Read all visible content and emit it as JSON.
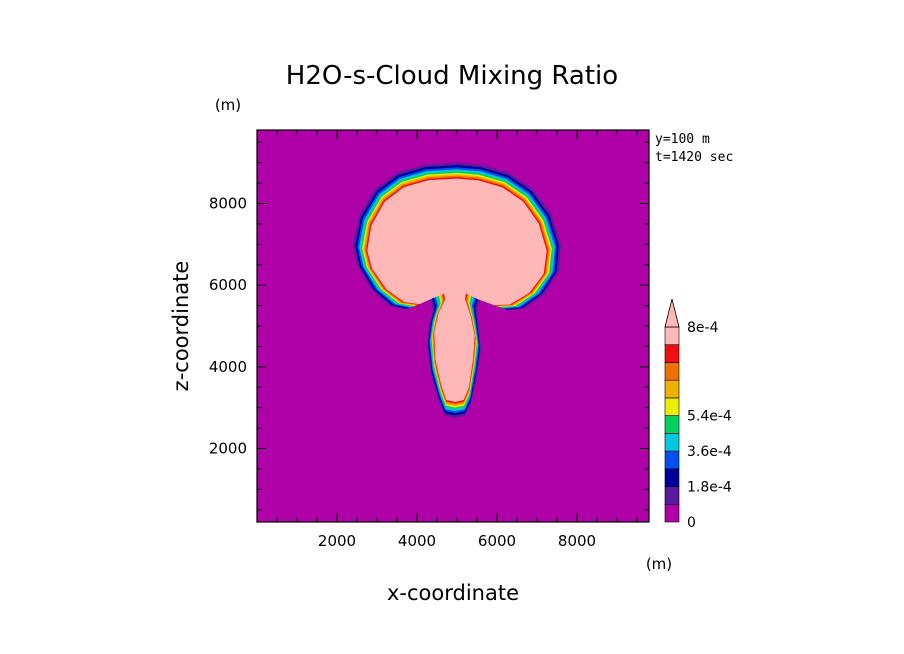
{
  "chart_data": {
    "type": "contour",
    "title": "H2O-s-Cloud Mixing Ratio",
    "xlabel": "x-coordinate",
    "ylabel": "z-coordinate",
    "x_unit": "(m)",
    "y_unit": "(m)",
    "xlim": [
      0,
      9800
    ],
    "ylim": [
      200,
      9800
    ],
    "x_ticks": [
      {
        "value": 2000,
        "label": "2000"
      },
      {
        "value": 4000,
        "label": "4000"
      },
      {
        "value": 6000,
        "label": "6000"
      },
      {
        "value": 8000,
        "label": "8000"
      }
    ],
    "y_ticks": [
      {
        "value": 2000,
        "label": "2000"
      },
      {
        "value": 4000,
        "label": "4000"
      },
      {
        "value": 6000,
        "label": "6000"
      },
      {
        "value": 8000,
        "label": "8000"
      }
    ],
    "annotations": [
      "y=100 m",
      "t=1420 sec"
    ],
    "background_level": 0,
    "colorbar": {
      "levels": [
        0,
        9e-05,
        0.00018,
        0.00027,
        0.00036,
        0.00045,
        0.00054,
        0.00063,
        0.00072,
        0.0008
      ],
      "colors": [
        "#b000a8",
        "#5a1aa0",
        "#00009a",
        "#0050f0",
        "#00c8e0",
        "#00d060",
        "#e8f000",
        "#f0b000",
        "#f07000",
        "#f01010",
        "#ffb8b8"
      ],
      "labels": [
        {
          "value": 0,
          "label": "0"
        },
        {
          "value": 0.00018,
          "label": "1.8e-4"
        },
        {
          "value": 0.00036,
          "label": "3.6e-4"
        },
        {
          "value": 0.00054,
          "label": "5.4e-4"
        },
        {
          "value": 0.0008,
          "label": "8e-4"
        }
      ],
      "extend": "max"
    },
    "cloud_outline": [
      [
        5000,
        9000
      ],
      [
        5600,
        8950
      ],
      [
        6300,
        8750
      ],
      [
        6900,
        8350
      ],
      [
        7350,
        7750
      ],
      [
        7600,
        7000
      ],
      [
        7550,
        6350
      ],
      [
        7200,
        5800
      ],
      [
        6700,
        5430
      ],
      [
        6300,
        5380
      ],
      [
        5900,
        5520
      ],
      [
        5600,
        5700
      ],
      [
        5500,
        5400
      ],
      [
        5550,
        4900
      ],
      [
        5600,
        4400
      ],
      [
        5500,
        3800
      ],
      [
        5350,
        3100
      ],
      [
        5200,
        2800
      ],
      [
        4950,
        2750
      ],
      [
        4700,
        2800
      ],
      [
        4550,
        3150
      ],
      [
        4350,
        3800
      ],
      [
        4250,
        4500
      ],
      [
        4300,
        5000
      ],
      [
        4400,
        5400
      ],
      [
        4300,
        5700
      ],
      [
        4000,
        5550
      ],
      [
        3700,
        5400
      ],
      [
        3300,
        5500
      ],
      [
        2850,
        5900
      ],
      [
        2500,
        6500
      ],
      [
        2400,
        7000
      ],
      [
        2550,
        7700
      ],
      [
        2950,
        8350
      ],
      [
        3500,
        8750
      ],
      [
        4200,
        8950
      ]
    ]
  }
}
